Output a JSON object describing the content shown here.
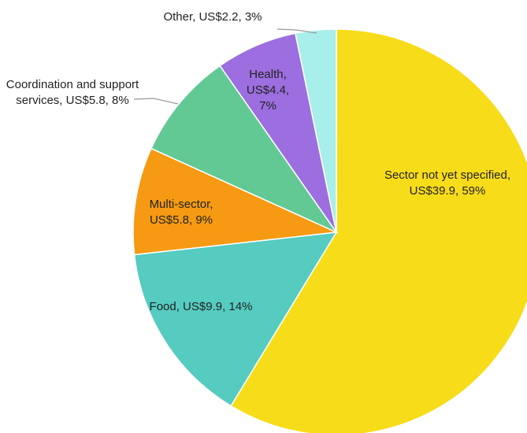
{
  "chart_data": {
    "type": "pie",
    "labels": [
      "Sector not yet specified, US$39.9, 59%",
      "Food, US$9.9, 14%",
      "Multi-sector, US$5.8, 9%",
      "Coordination and support services, US$5.8, 8%",
      "Health, US$4.4, 7%",
      "Other, US$2.2, 3%"
    ],
    "values": [
      39.9,
      9.9,
      5.8,
      5.8,
      4.4,
      2.2
    ],
    "colors": [
      "#f7dc1a",
      "#56cbc0",
      "#f59a12",
      "#62c994",
      "#9c6ee0",
      "#a8eeea"
    ]
  }
}
